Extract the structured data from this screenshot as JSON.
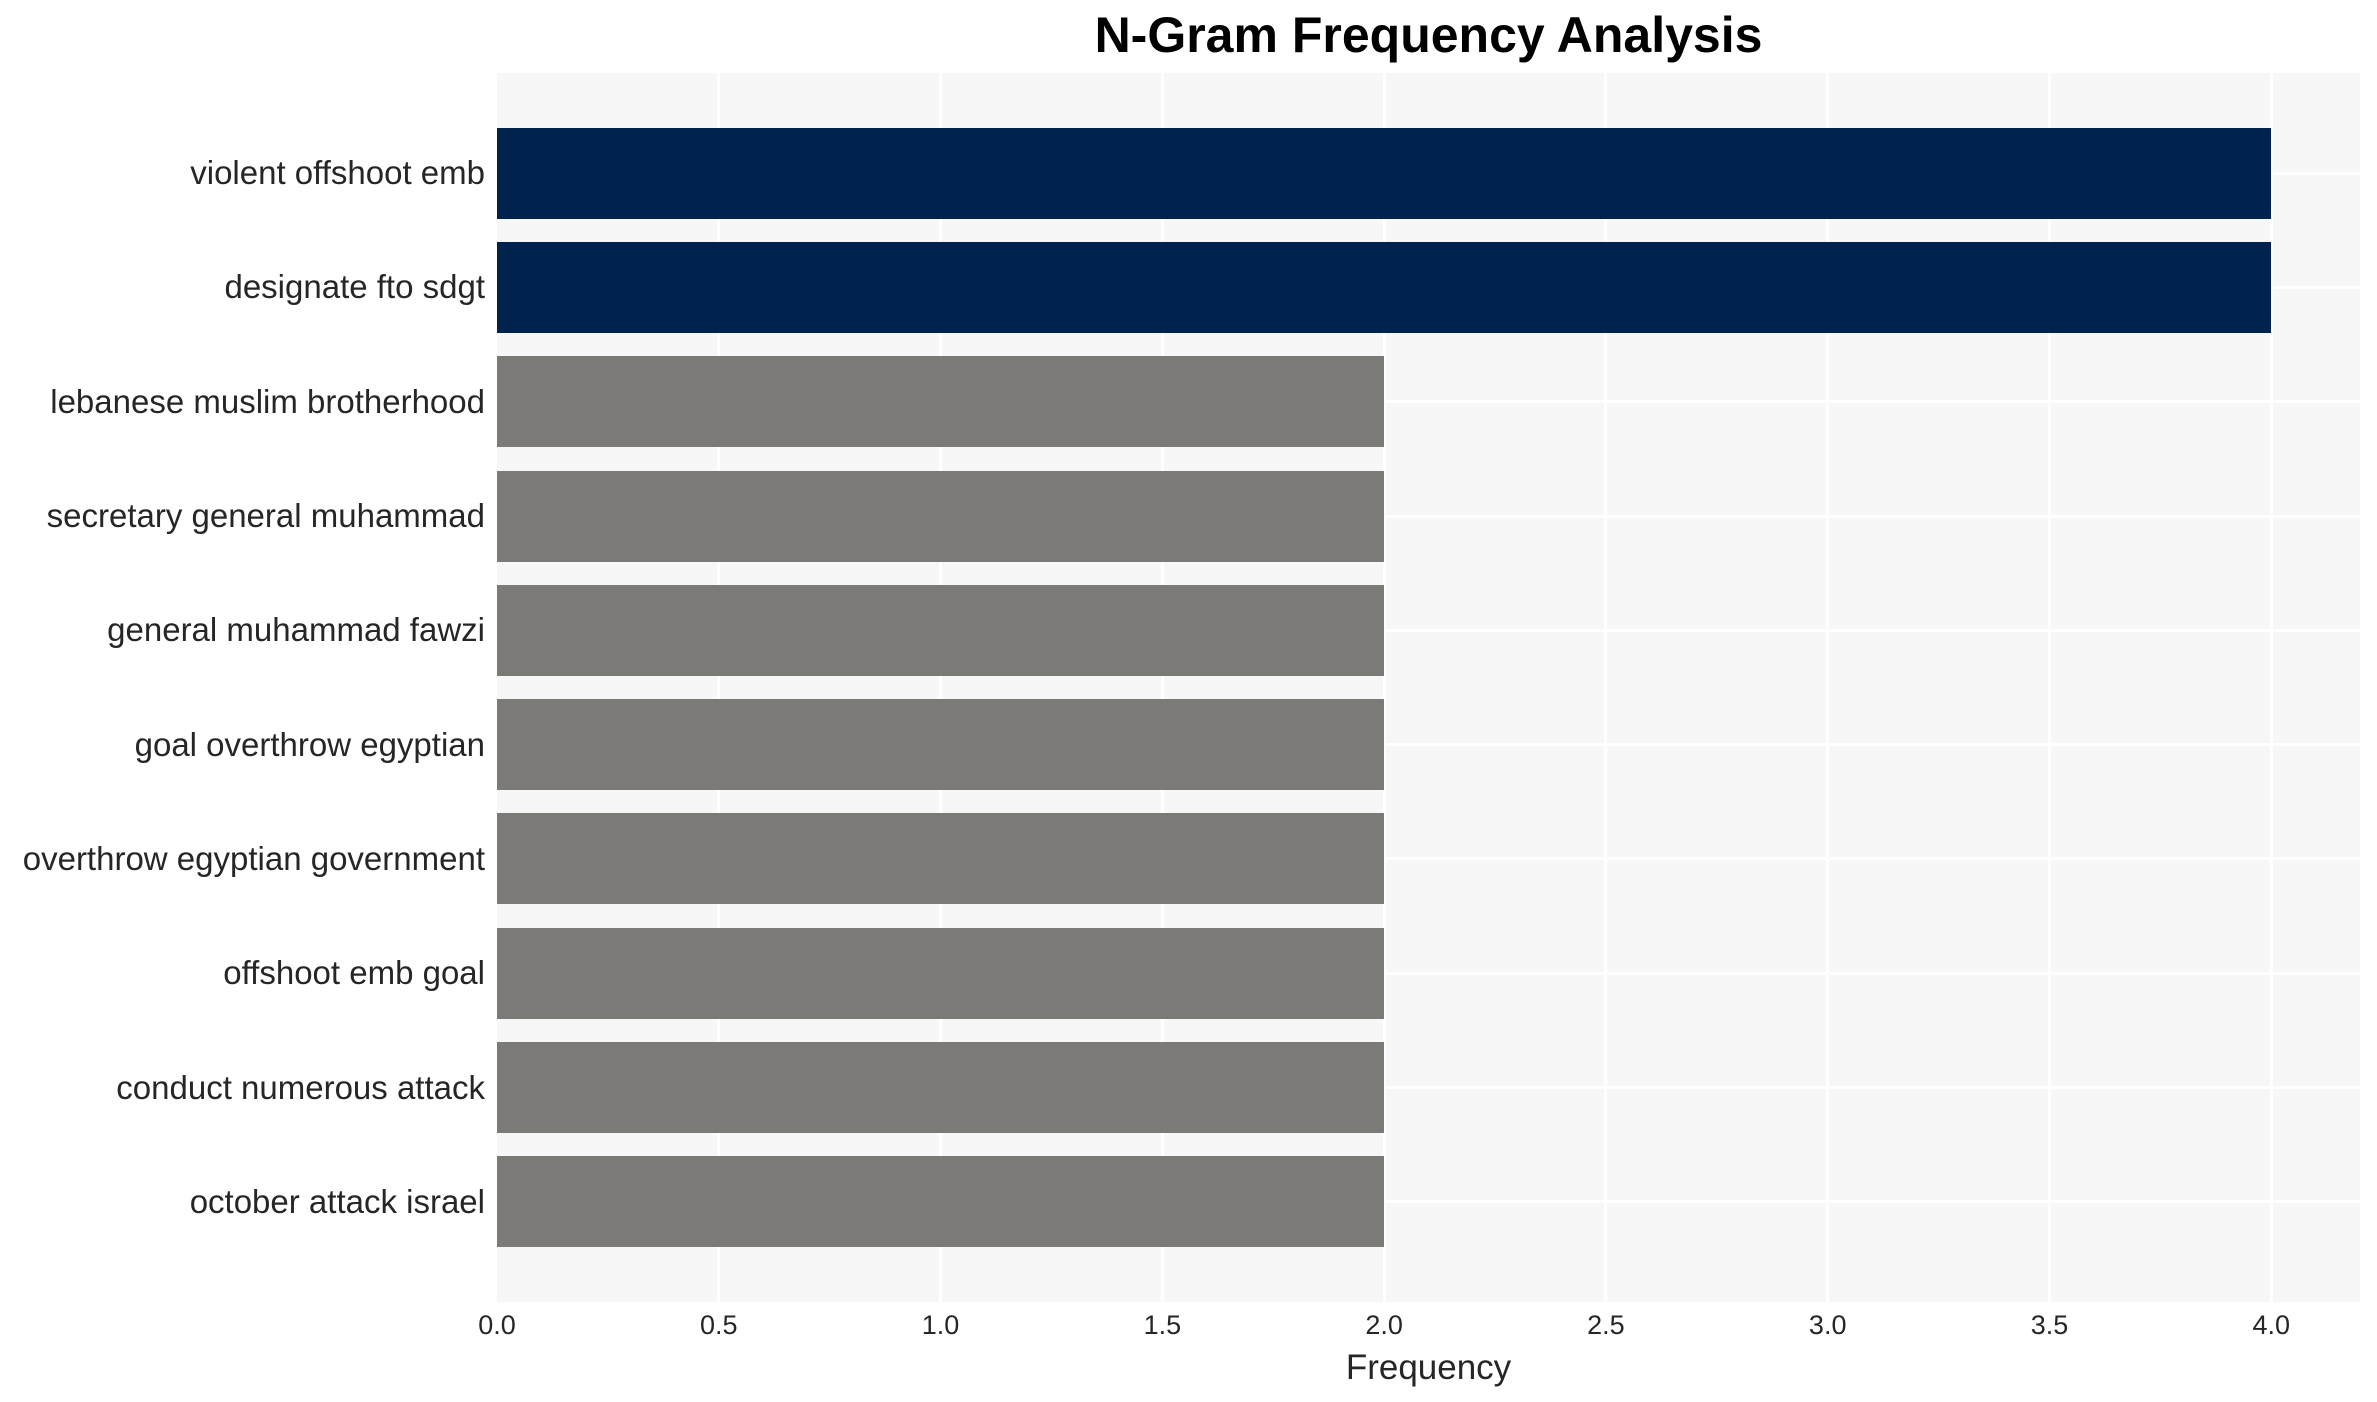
{
  "chart_data": {
    "type": "bar",
    "orientation": "horizontal",
    "title": "N-Gram Frequency Analysis",
    "xlabel": "Frequency",
    "ylabel": "",
    "categories": [
      "violent offshoot emb",
      "designate fto sdgt",
      "lebanese muslim brotherhood",
      "secretary general muhammad",
      "general muhammad fawzi",
      "goal overthrow egyptian",
      "overthrow egyptian government",
      "offshoot emb goal",
      "conduct numerous attack",
      "october attack israel"
    ],
    "values": [
      4,
      4,
      2,
      2,
      2,
      2,
      2,
      2,
      2,
      2
    ],
    "xlim": [
      0,
      4.2
    ],
    "xticks": [
      0.0,
      0.5,
      1.0,
      1.5,
      2.0,
      2.5,
      3.0,
      3.5,
      4.0
    ],
    "xtick_labels": [
      "0.0",
      "0.5",
      "1.0",
      "1.5",
      "2.0",
      "2.5",
      "3.0",
      "3.5",
      "4.0"
    ],
    "grid": true,
    "grid_style": "white-on-lightgray, vertical at x ticks and horizontal at category centers",
    "legend": false,
    "colors": {
      "bar_highlight": "#00234e",
      "bar_default": "#7b7a76",
      "plot_background": "#f7f7f7",
      "grid_line": "#ffffff",
      "tick_text": "#262626",
      "title_text": "#000000"
    },
    "highlight_count": 2
  }
}
